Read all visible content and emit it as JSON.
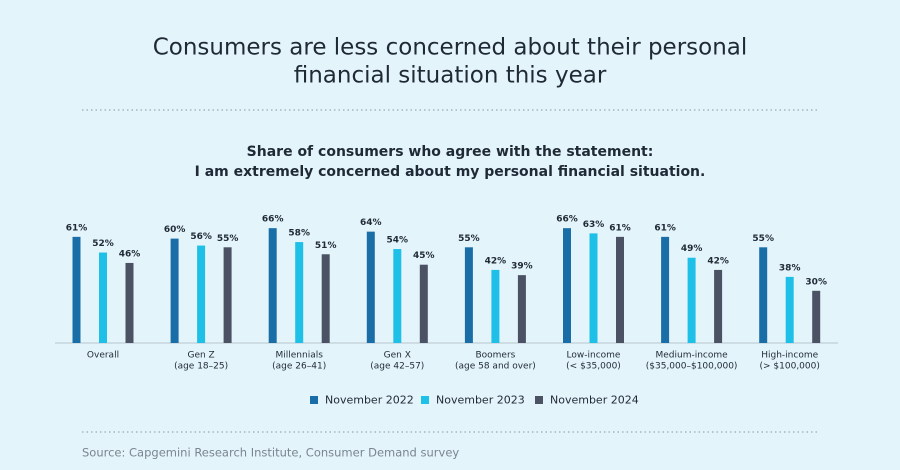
{
  "chart_data": {
    "type": "bar",
    "title": [
      "Consumers are less concerned about their personal",
      "financial situation this year"
    ],
    "subtitle": [
      "Share of consumers who agree with the statement:",
      "I am extremely concerned about my personal financial situation."
    ],
    "categories": [
      [
        "Overall"
      ],
      [
        "Gen Z",
        "(age 18–25)"
      ],
      [
        "Millennials",
        "(age 26–41)"
      ],
      [
        "Gen X",
        "(age 42–57)"
      ],
      [
        "Boomers",
        "(age 58 and over)"
      ],
      [
        "Low-income",
        "(< $35,000)"
      ],
      [
        "Medium-income",
        "($35,000–$100,000)"
      ],
      [
        "High-income",
        "(> $100,000)"
      ]
    ],
    "series": [
      {
        "name": "November 2022",
        "color": "#1a6ea8",
        "values": [
          61,
          60,
          66,
          64,
          55,
          66,
          61,
          55
        ],
        "value_labels": [
          "61%",
          "60%",
          "66%",
          "64%",
          "55%",
          "66%",
          "61%",
          "55%"
        ]
      },
      {
        "name": "November 2023",
        "color": "#1ec0e8",
        "values": [
          52,
          56,
          58,
          54,
          42,
          63,
          49,
          38
        ],
        "value_labels": [
          "52%",
          "56%",
          "58%",
          "54%",
          "42%",
          "63%",
          "49%",
          "38%"
        ]
      },
      {
        "name": "November 2024",
        "color": "#4a5264",
        "values": [
          46,
          55,
          51,
          45,
          39,
          61,
          42,
          30
        ],
        "value_labels": [
          "46%",
          "55%",
          "51%",
          "45%",
          "39%",
          "61%",
          "42%",
          "30%"
        ]
      }
    ],
    "source": "Source: Capgemini Research Institute, Consumer Demand survey"
  }
}
